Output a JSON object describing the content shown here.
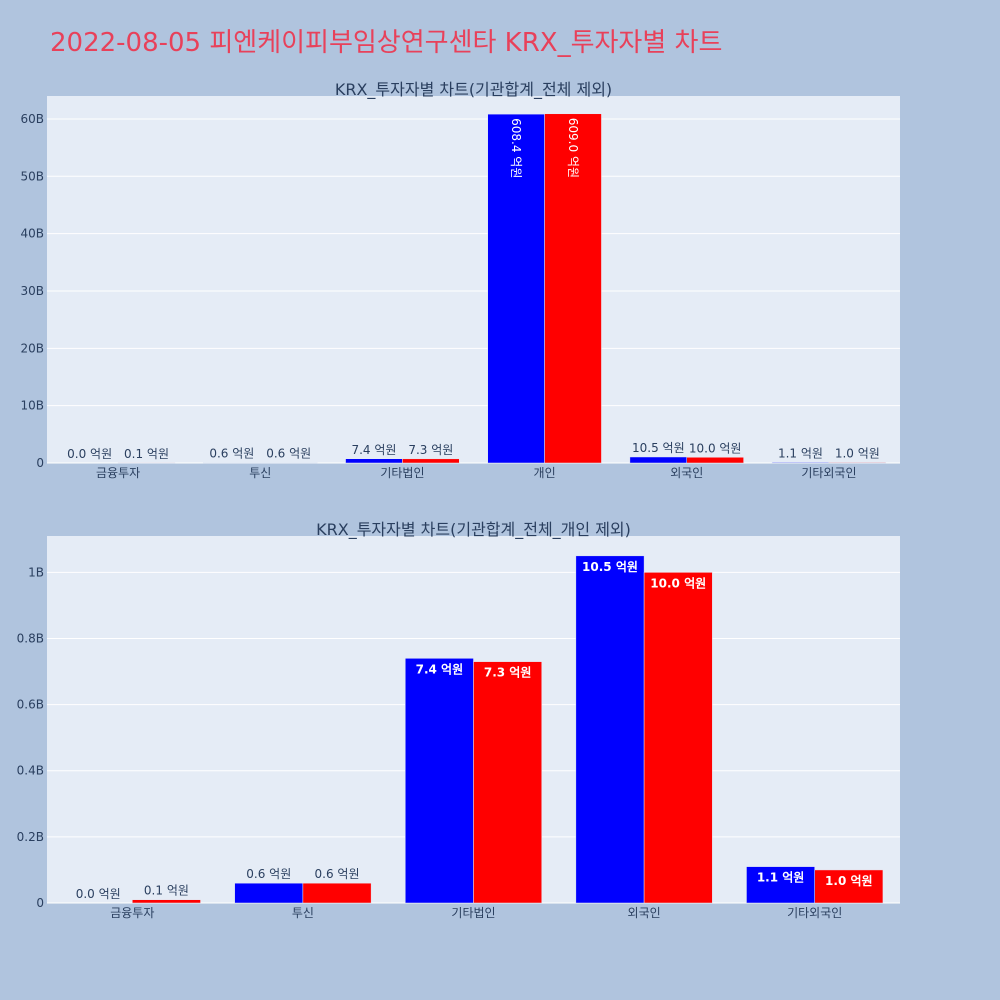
{
  "page": {
    "title": "2022-08-05 피엔케이피부임상연구센타 KRX_투자자별 차트"
  },
  "colors": {
    "background": "#b0c4de",
    "plot_background": "#e5ecf6",
    "title": "#e8415a",
    "series_1": "#0000ff",
    "series_2": "#ff0000",
    "text": "#2a3f5f"
  },
  "chart_data": [
    {
      "type": "bar",
      "title": "KRX_투자자별 차트(기관합계_전체 제외)",
      "categories": [
        "금융투자",
        "투신",
        "기타법인",
        "개인",
        "외국인",
        "기타외국인"
      ],
      "series": [
        {
          "color": "#0000ff",
          "values": [
            0.0,
            60000000,
            740000000,
            60840000000,
            1050000000,
            110000000
          ],
          "labels": [
            "0.0 억원",
            "0.6 억원",
            "7.4 억원",
            "608.4 억원",
            "10.5 억원",
            "1.1 억원"
          ]
        },
        {
          "color": "#ff0000",
          "values": [
            10000000,
            60000000,
            730000000,
            60900000000,
            1000000000,
            100000000
          ],
          "labels": [
            "0.1 억원",
            "0.6 억원",
            "7.3 억원",
            "609.0 억원",
            "10.0 억원",
            "1.0 억원"
          ]
        }
      ],
      "yticks": [
        0,
        10000000000,
        20000000000,
        30000000000,
        40000000000,
        50000000000,
        60000000000
      ],
      "ytick_labels": [
        "0",
        "10B",
        "20B",
        "30B",
        "40B",
        "50B",
        "60B"
      ],
      "ylim": [
        0,
        64000000000
      ],
      "grid": true,
      "legend": "none"
    },
    {
      "type": "bar",
      "title": "KRX_투자자별 차트(기관합계_전체_개인 제외)",
      "categories": [
        "금융투자",
        "투신",
        "기타법인",
        "외국인",
        "기타외국인"
      ],
      "series": [
        {
          "color": "#0000ff",
          "values": [
            0.0,
            60000000,
            740000000,
            1050000000,
            110000000
          ],
          "labels": [
            "0.0 억원",
            "0.6 억원",
            "7.4 억원",
            "10.5 억원",
            "1.1 억원"
          ]
        },
        {
          "color": "#ff0000",
          "values": [
            10000000,
            60000000,
            730000000,
            1000000000,
            100000000
          ],
          "labels": [
            "0.1 억원",
            "0.6 억원",
            "7.3 억원",
            "10.0 억원",
            "1.0 억원"
          ]
        }
      ],
      "yticks": [
        0,
        200000000,
        400000000,
        600000000,
        800000000,
        1000000000
      ],
      "ytick_labels": [
        "0",
        "0.2B",
        "0.4B",
        "0.6B",
        "0.8B",
        "1B"
      ],
      "ylim": [
        0,
        1110000000
      ],
      "grid": true,
      "legend": "none"
    }
  ]
}
